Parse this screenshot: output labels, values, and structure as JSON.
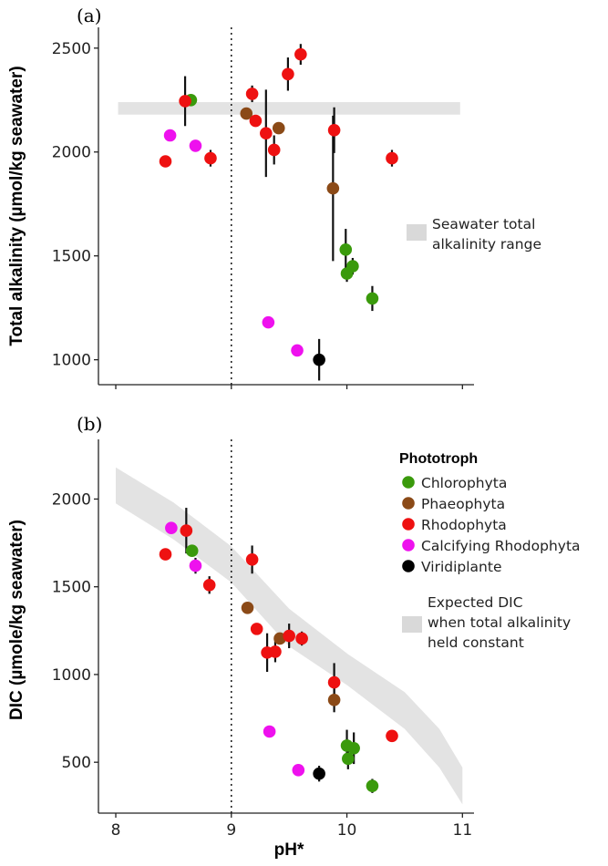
{
  "chart_data": [
    {
      "panel": "a",
      "panel_label": "(a)",
      "type": "scatter",
      "xlabel": "",
      "ylabel": "Total alkalinity (µmol/kg seawater)",
      "xlim": [
        7.85,
        11.1
      ],
      "ylim": [
        880,
        2600
      ],
      "x_ticks": [
        8,
        9,
        10,
        11
      ],
      "x_tick_labels_shown": false,
      "y_ticks": [
        1000,
        1500,
        2000,
        2500
      ],
      "y_tick_labels": [
        "1000",
        "1500",
        "2000",
        "2500"
      ],
      "reference_line_x": 9,
      "band": {
        "label_lines": [
          "Seawater total",
          "alkalinity range"
        ],
        "x": [
          8.02,
          10.98
        ],
        "y_low": 2180,
        "y_high": 2240
      },
      "series": [
        {
          "name": "Chlorophyta",
          "color": "#3a9a0c",
          "points": [
            {
              "x": 8.65,
              "y": 2250
            },
            {
              "x": 9.99,
              "y": 1530
            },
            {
              "x": 10.0,
              "y": 1415
            },
            {
              "x": 10.05,
              "y": 1450
            },
            {
              "x": 10.22,
              "y": 1295
            }
          ],
          "errors": [
            0,
            100,
            40,
            40,
            60
          ]
        },
        {
          "name": "Phaeophyta",
          "color": "#8b4a17",
          "points": [
            {
              "x": 9.13,
              "y": 2185
            },
            {
              "x": 9.41,
              "y": 2115
            },
            {
              "x": 9.88,
              "y": 1825
            }
          ],
          "errors": [
            0,
            0,
            350
          ]
        },
        {
          "name": "Rhodophyta",
          "color": "#ee1111",
          "points": [
            {
              "x": 8.43,
              "y": 1955
            },
            {
              "x": 8.6,
              "y": 2245
            },
            {
              "x": 8.82,
              "y": 1970
            },
            {
              "x": 9.18,
              "y": 2280
            },
            {
              "x": 9.21,
              "y": 2150
            },
            {
              "x": 9.3,
              "y": 2090
            },
            {
              "x": 9.37,
              "y": 2010
            },
            {
              "x": 9.49,
              "y": 2375
            },
            {
              "x": 9.6,
              "y": 2470
            },
            {
              "x": 9.89,
              "y": 2105
            },
            {
              "x": 10.39,
              "y": 1970
            }
          ],
          "errors": [
            0,
            120,
            40,
            40,
            0,
            210,
            70,
            80,
            50,
            110,
            40
          ]
        },
        {
          "name": "Calcifying Rhodophyta",
          "color": "#ee11ee",
          "points": [
            {
              "x": 8.47,
              "y": 2080
            },
            {
              "x": 8.69,
              "y": 2030
            },
            {
              "x": 9.32,
              "y": 1180
            },
            {
              "x": 9.57,
              "y": 1045
            }
          ],
          "errors": [
            0,
            25,
            0,
            25
          ]
        },
        {
          "name": "Viridiplante",
          "color": "#000000",
          "points": [
            {
              "x": 9.76,
              "y": 1000
            }
          ],
          "errors": [
            100
          ]
        }
      ]
    },
    {
      "panel": "b",
      "panel_label": "(b)",
      "type": "scatter",
      "xlabel": "pH*",
      "ylabel": "DIC (µmole/kg seawater)",
      "xlim": [
        7.85,
        11.1
      ],
      "ylim": [
        210,
        2340
      ],
      "x_ticks": [
        8,
        9,
        10,
        11
      ],
      "x_tick_labels": [
        "8",
        "9",
        "10",
        "11"
      ],
      "y_ticks": [
        500,
        1000,
        1500,
        2000
      ],
      "y_tick_labels": [
        "500",
        "1000",
        "1500",
        "2000"
      ],
      "reference_line_x": 9,
      "band": {
        "label_lines": [
          "Expected DIC",
          "when total alkalinity",
          "held constant"
        ],
        "x": [
          8.0,
          8.5,
          9.0,
          9.5,
          10.0,
          10.5,
          10.8,
          11.0
        ],
        "y_low": [
          1975,
          1770,
          1525,
          1160,
          940,
          690,
          470,
          260
        ],
        "y_high": [
          2180,
          1980,
          1730,
          1375,
          1120,
          900,
          690,
          470
        ]
      },
      "legend": {
        "title": "Phototroph",
        "entries": [
          "Chlorophyta",
          "Phaeophyta",
          "Rhodophyta",
          "Calcifying Rhodophyta",
          "Viridiplante"
        ]
      },
      "series": [
        {
          "name": "Chlorophyta",
          "color": "#3a9a0c",
          "points": [
            {
              "x": 8.66,
              "y": 1705
            },
            {
              "x": 10.0,
              "y": 595
            },
            {
              "x": 10.01,
              "y": 520
            },
            {
              "x": 10.06,
              "y": 580
            },
            {
              "x": 10.22,
              "y": 365
            }
          ],
          "errors": [
            0,
            90,
            60,
            90,
            40
          ]
        },
        {
          "name": "Phaeophyta",
          "color": "#8b4a17",
          "points": [
            {
              "x": 9.14,
              "y": 1380
            },
            {
              "x": 9.42,
              "y": 1205
            },
            {
              "x": 9.89,
              "y": 855
            }
          ],
          "errors": [
            0,
            0,
            70
          ]
        },
        {
          "name": "Rhodophyta",
          "color": "#ee1111",
          "points": [
            {
              "x": 8.43,
              "y": 1685
            },
            {
              "x": 8.61,
              "y": 1820
            },
            {
              "x": 8.81,
              "y": 1510
            },
            {
              "x": 9.18,
              "y": 1655
            },
            {
              "x": 9.22,
              "y": 1260
            },
            {
              "x": 9.31,
              "y": 1125
            },
            {
              "x": 9.38,
              "y": 1130
            },
            {
              "x": 9.5,
              "y": 1220
            },
            {
              "x": 9.61,
              "y": 1205
            },
            {
              "x": 9.89,
              "y": 955
            },
            {
              "x": 10.39,
              "y": 650
            }
          ],
          "errors": [
            0,
            130,
            50,
            80,
            0,
            110,
            60,
            70,
            40,
            110,
            0
          ]
        },
        {
          "name": "Calcifying Rhodophyta",
          "color": "#ee11ee",
          "points": [
            {
              "x": 8.48,
              "y": 1835
            },
            {
              "x": 8.69,
              "y": 1620
            },
            {
              "x": 9.33,
              "y": 675
            },
            {
              "x": 9.58,
              "y": 455
            }
          ],
          "errors": [
            0,
            45,
            0,
            0
          ]
        },
        {
          "name": "Viridiplante",
          "color": "#000000",
          "points": [
            {
              "x": 9.76,
              "y": 435
            }
          ],
          "errors": [
            45
          ]
        }
      ]
    }
  ]
}
